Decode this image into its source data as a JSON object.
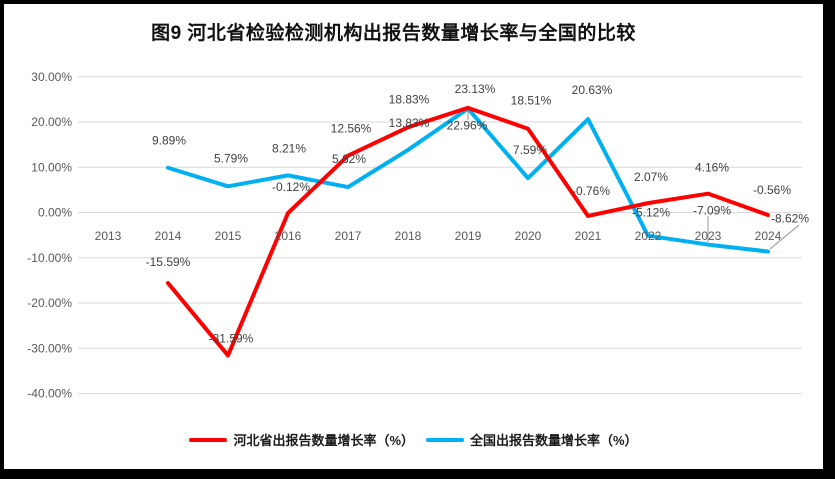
{
  "title": "图9 河北省检验检测机构出报告数量增长率与全国的比较",
  "chart_data": {
    "type": "line",
    "title": "图9 河北省检验检测机构出报告数量增长率与全国的比较",
    "categories": [
      "2013",
      "2014",
      "2015",
      "2016",
      "2017",
      "2018",
      "2019",
      "2020",
      "2021",
      "2022",
      "2023",
      "2024"
    ],
    "series": [
      {
        "name": "河北省出报告数量增长率（%）",
        "color": "#FF0000",
        "values": [
          null,
          -15.59,
          -31.59,
          -0.12,
          12.56,
          18.83,
          23.13,
          18.51,
          -0.76,
          2.07,
          4.16,
          -0.56
        ]
      },
      {
        "name": "全国出报告数量增长率（%）",
        "color": "#00B0F0",
        "values": [
          null,
          9.89,
          5.79,
          8.21,
          5.62,
          13.83,
          22.96,
          7.59,
          20.63,
          -5.12,
          -7.09,
          -8.62
        ]
      }
    ],
    "ylim": [
      -40,
      30
    ],
    "ytick_step": 10,
    "ytick_labels": [
      "30.00%",
      "20.00%",
      "10.00%",
      "0.00%",
      "-10.00%",
      "-20.00%",
      "-30.00%",
      "-40.00%"
    ],
    "grid": true,
    "legend_position": "bottom",
    "data_labels": true
  },
  "colors": {
    "gridline": "#D9D9D9",
    "axis_text": "#595959",
    "data_label_text": "#404040",
    "leader_line": "#A6A6A6",
    "frame_border": "#000000",
    "background": "#FFFFFF"
  }
}
